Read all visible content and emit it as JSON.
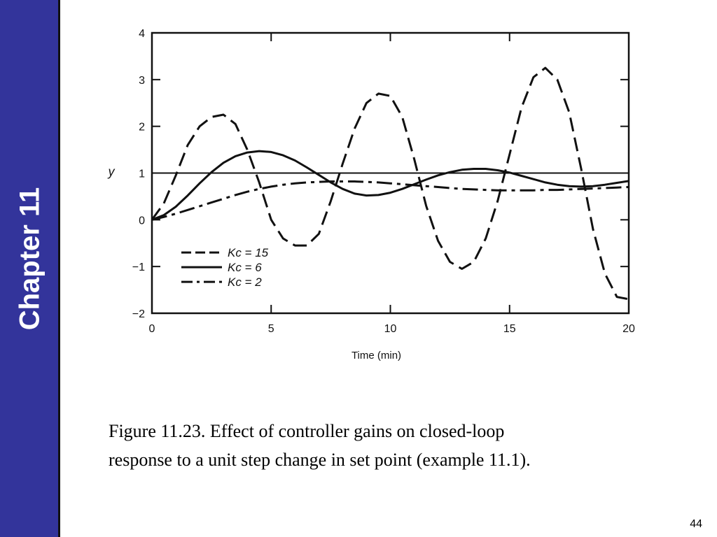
{
  "slide": {
    "chapter_label": "Chapter 11",
    "caption_line1": "Figure 11.23. Effect of controller gains on closed-loop",
    "caption_line2": "response to a unit step change in set point (example 11.1).",
    "slide_number": "44",
    "sidebar_color": "#33349b"
  },
  "chart_data": {
    "type": "line",
    "title": "",
    "xlabel": "Time (min)",
    "ylabel": "y",
    "xlim": [
      0,
      20
    ],
    "ylim": [
      -2,
      4
    ],
    "x_ticks": [
      0,
      5,
      10,
      15,
      20
    ],
    "y_ticks": [
      -2,
      -1,
      0,
      1,
      2,
      3,
      4
    ],
    "y_tick_labels": [
      "−2",
      "−1",
      "0",
      "1",
      "2",
      "3",
      "4"
    ],
    "grid": false,
    "legend_position": "lower-left",
    "reference_line": {
      "y": 1
    },
    "series": [
      {
        "name": "Kc = 15",
        "style": "dashed",
        "x": [
          0,
          0.5,
          1,
          1.5,
          2,
          2.5,
          3,
          3.5,
          4,
          4.5,
          5,
          5.5,
          6,
          6.5,
          7,
          7.5,
          8,
          8.5,
          9,
          9.5,
          10,
          10.5,
          11,
          11.5,
          12,
          12.5,
          13,
          13.5,
          14,
          14.5,
          15,
          15.5,
          16,
          16.5,
          17,
          17.5,
          18,
          18.5,
          19,
          19.5,
          20
        ],
        "y": [
          0,
          0.35,
          0.95,
          1.6,
          2.0,
          2.2,
          2.25,
          2.05,
          1.5,
          0.8,
          0.0,
          -0.4,
          -0.55,
          -0.55,
          -0.3,
          0.4,
          1.2,
          1.95,
          2.5,
          2.7,
          2.65,
          2.2,
          1.3,
          0.3,
          -0.45,
          -0.9,
          -1.05,
          -0.9,
          -0.4,
          0.4,
          1.4,
          2.4,
          3.05,
          3.25,
          3.0,
          2.3,
          1.1,
          -0.2,
          -1.15,
          -1.65,
          -1.7
        ]
      },
      {
        "name": "Kc = 6",
        "style": "solid",
        "x": [
          0,
          0.5,
          1,
          1.5,
          2,
          2.5,
          3,
          3.5,
          4,
          4.5,
          5,
          5.5,
          6,
          6.5,
          7,
          7.5,
          8,
          8.5,
          9,
          9.5,
          10,
          10.5,
          11,
          11.5,
          12,
          12.5,
          13,
          13.5,
          14,
          14.5,
          15,
          15.5,
          16,
          16.5,
          17,
          17.5,
          18,
          18.5,
          19,
          19.5,
          20
        ],
        "y": [
          0,
          0.1,
          0.28,
          0.52,
          0.78,
          1.02,
          1.22,
          1.36,
          1.44,
          1.47,
          1.45,
          1.38,
          1.27,
          1.12,
          0.96,
          0.8,
          0.66,
          0.56,
          0.52,
          0.53,
          0.58,
          0.66,
          0.76,
          0.86,
          0.95,
          1.02,
          1.07,
          1.09,
          1.09,
          1.06,
          1.01,
          0.94,
          0.87,
          0.8,
          0.75,
          0.72,
          0.71,
          0.72,
          0.75,
          0.79,
          0.83
        ]
      },
      {
        "name": "Kc = 2",
        "style": "dash-dot",
        "x": [
          0,
          0.5,
          1,
          1.5,
          2,
          2.5,
          3,
          3.5,
          4,
          4.5,
          5,
          5.5,
          6,
          6.5,
          7,
          7.5,
          8,
          8.5,
          9,
          9.5,
          10,
          10.5,
          11,
          11.5,
          12,
          12.5,
          13,
          13.5,
          14,
          14.5,
          15,
          15.5,
          16,
          16.5,
          17,
          17.5,
          18,
          18.5,
          19,
          19.5,
          20
        ],
        "y": [
          0,
          0.06,
          0.13,
          0.21,
          0.29,
          0.37,
          0.45,
          0.53,
          0.6,
          0.66,
          0.71,
          0.75,
          0.78,
          0.8,
          0.81,
          0.82,
          0.82,
          0.82,
          0.81,
          0.8,
          0.78,
          0.76,
          0.74,
          0.72,
          0.7,
          0.68,
          0.66,
          0.65,
          0.64,
          0.63,
          0.63,
          0.63,
          0.63,
          0.64,
          0.64,
          0.65,
          0.66,
          0.67,
          0.68,
          0.69,
          0.7
        ]
      }
    ]
  }
}
